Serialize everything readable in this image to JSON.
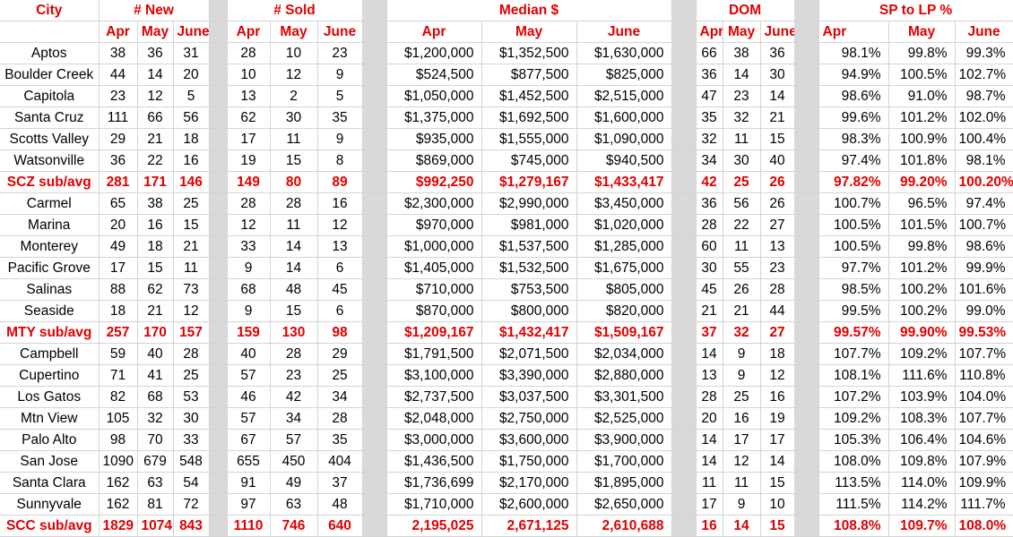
{
  "groups": [
    "City",
    "# New",
    "# Sold",
    "Median $",
    "DOM",
    "SP to LP %"
  ],
  "months": [
    "Apr",
    "May",
    "June"
  ],
  "rows": [
    {
      "sub": false,
      "c": [
        "Aptos",
        "38",
        "36",
        "31",
        "28",
        "10",
        "23",
        "$1,200,000",
        "$1,352,500",
        "$1,630,000",
        "66",
        "38",
        "36",
        "98.1%",
        "99.8%",
        "99.3%"
      ]
    },
    {
      "sub": false,
      "c": [
        "Boulder Creek",
        "44",
        "14",
        "20",
        "10",
        "12",
        "9",
        "$524,500",
        "$877,500",
        "$825,000",
        "36",
        "14",
        "30",
        "94.9%",
        "100.5%",
        "102.7%"
      ]
    },
    {
      "sub": false,
      "c": [
        "Capitola",
        "23",
        "12",
        "5",
        "13",
        "2",
        "5",
        "$1,050,000",
        "$1,452,500",
        "$2,515,000",
        "47",
        "23",
        "14",
        "98.6%",
        "91.0%",
        "98.7%"
      ]
    },
    {
      "sub": false,
      "c": [
        "Santa Cruz",
        "111",
        "66",
        "56",
        "62",
        "30",
        "35",
        "$1,375,000",
        "$1,692,500",
        "$1,600,000",
        "35",
        "32",
        "21",
        "99.6%",
        "101.2%",
        "102.0%"
      ]
    },
    {
      "sub": false,
      "c": [
        "Scotts Valley",
        "29",
        "21",
        "18",
        "17",
        "11",
        "9",
        "$935,000",
        "$1,555,000",
        "$1,090,000",
        "32",
        "11",
        "15",
        "98.3%",
        "100.9%",
        "100.4%"
      ]
    },
    {
      "sub": false,
      "c": [
        "Watsonville",
        "36",
        "22",
        "16",
        "19",
        "15",
        "8",
        "$869,000",
        "$745,000",
        "$940,500",
        "34",
        "30",
        "40",
        "97.4%",
        "101.8%",
        "98.1%"
      ]
    },
    {
      "sub": true,
      "c": [
        "SCZ sub/avg",
        "281",
        "171",
        "146",
        "149",
        "80",
        "89",
        "$992,250",
        "$1,279,167",
        "$1,433,417",
        "42",
        "25",
        "26",
        "97.82%",
        "99.20%",
        "100.20%"
      ]
    },
    {
      "sub": false,
      "c": [
        "Carmel",
        "65",
        "38",
        "25",
        "28",
        "28",
        "16",
        "$2,300,000",
        "$2,990,000",
        "$3,450,000",
        "36",
        "56",
        "26",
        "100.7%",
        "96.5%",
        "97.4%"
      ]
    },
    {
      "sub": false,
      "c": [
        "Marina",
        "20",
        "16",
        "15",
        "12",
        "11",
        "12",
        "$970,000",
        "$981,000",
        "$1,020,000",
        "28",
        "22",
        "27",
        "100.5%",
        "101.5%",
        "100.7%"
      ]
    },
    {
      "sub": false,
      "c": [
        "Monterey",
        "49",
        "18",
        "21",
        "33",
        "14",
        "13",
        "$1,000,000",
        "$1,537,500",
        "$1,285,000",
        "60",
        "11",
        "13",
        "100.5%",
        "99.8%",
        "98.6%"
      ]
    },
    {
      "sub": false,
      "c": [
        "Pacific Grove",
        "17",
        "15",
        "11",
        "9",
        "14",
        "6",
        "$1,405,000",
        "$1,532,500",
        "$1,675,000",
        "30",
        "55",
        "23",
        "97.7%",
        "101.2%",
        "99.9%"
      ]
    },
    {
      "sub": false,
      "c": [
        "Salinas",
        "88",
        "62",
        "73",
        "68",
        "48",
        "45",
        "$710,000",
        "$753,500",
        "$805,000",
        "45",
        "26",
        "28",
        "98.5%",
        "100.2%",
        "101.6%"
      ]
    },
    {
      "sub": false,
      "c": [
        "Seaside",
        "18",
        "21",
        "12",
        "9",
        "15",
        "6",
        "$870,000",
        "$800,000",
        "$820,000",
        "21",
        "21",
        "44",
        "99.5%",
        "100.2%",
        "99.0%"
      ]
    },
    {
      "sub": true,
      "c": [
        "MTY sub/avg",
        "257",
        "170",
        "157",
        "159",
        "130",
        "98",
        "$1,209,167",
        "$1,432,417",
        "$1,509,167",
        "37",
        "32",
        "27",
        "99.57%",
        "99.90%",
        "99.53%"
      ]
    },
    {
      "sub": false,
      "c": [
        "Campbell",
        "59",
        "40",
        "28",
        "40",
        "28",
        "29",
        "$1,791,500",
        "$2,071,500",
        "$2,034,000",
        "14",
        "9",
        "18",
        "107.7%",
        "109.2%",
        "107.7%"
      ]
    },
    {
      "sub": false,
      "c": [
        "Cupertino",
        "71",
        "41",
        "25",
        "57",
        "23",
        "25",
        "$3,100,000",
        "$3,390,000",
        "$2,880,000",
        "13",
        "9",
        "12",
        "108.1%",
        "111.6%",
        "110.8%"
      ]
    },
    {
      "sub": false,
      "c": [
        "Los Gatos",
        "82",
        "68",
        "53",
        "46",
        "42",
        "34",
        "$2,737,500",
        "$3,037,500",
        "$3,301,500",
        "28",
        "25",
        "16",
        "107.2%",
        "103.9%",
        "104.0%"
      ]
    },
    {
      "sub": false,
      "c": [
        "Mtn View",
        "105",
        "32",
        "30",
        "57",
        "34",
        "28",
        "$2,048,000",
        "$2,750,000",
        "$2,525,000",
        "20",
        "16",
        "19",
        "109.2%",
        "108.3%",
        "107.7%"
      ]
    },
    {
      "sub": false,
      "c": [
        "Palo Alto",
        "98",
        "70",
        "33",
        "67",
        "57",
        "35",
        "$3,000,000",
        "$3,600,000",
        "$3,900,000",
        "14",
        "17",
        "17",
        "105.3%",
        "106.4%",
        "104.6%"
      ]
    },
    {
      "sub": false,
      "c": [
        "San Jose",
        "1090",
        "679",
        "548",
        "655",
        "450",
        "404",
        "$1,436,500",
        "$1,750,000",
        "$1,700,000",
        "14",
        "12",
        "14",
        "108.0%",
        "109.8%",
        "107.9%"
      ]
    },
    {
      "sub": false,
      "c": [
        "Santa Clara",
        "162",
        "63",
        "54",
        "91",
        "49",
        "37",
        "$1,736,699",
        "$2,170,000",
        "$1,895,000",
        "11",
        "11",
        "15",
        "113.5%",
        "114.0%",
        "109.9%"
      ]
    },
    {
      "sub": false,
      "c": [
        "Sunnyvale",
        "162",
        "81",
        "72",
        "97",
        "63",
        "48",
        "$1,710,000",
        "$2,600,000",
        "$2,650,000",
        "17",
        "9",
        "10",
        "111.5%",
        "114.2%",
        "111.7%"
      ]
    },
    {
      "sub": true,
      "c": [
        "SCC sub/avg",
        "1829",
        "1074",
        "843",
        "1110",
        "746",
        "640",
        "2,195,025",
        "2,671,125",
        "2,610,688",
        "16",
        "14",
        "15",
        "108.8%",
        "109.7%",
        "108.0%"
      ]
    }
  ]
}
